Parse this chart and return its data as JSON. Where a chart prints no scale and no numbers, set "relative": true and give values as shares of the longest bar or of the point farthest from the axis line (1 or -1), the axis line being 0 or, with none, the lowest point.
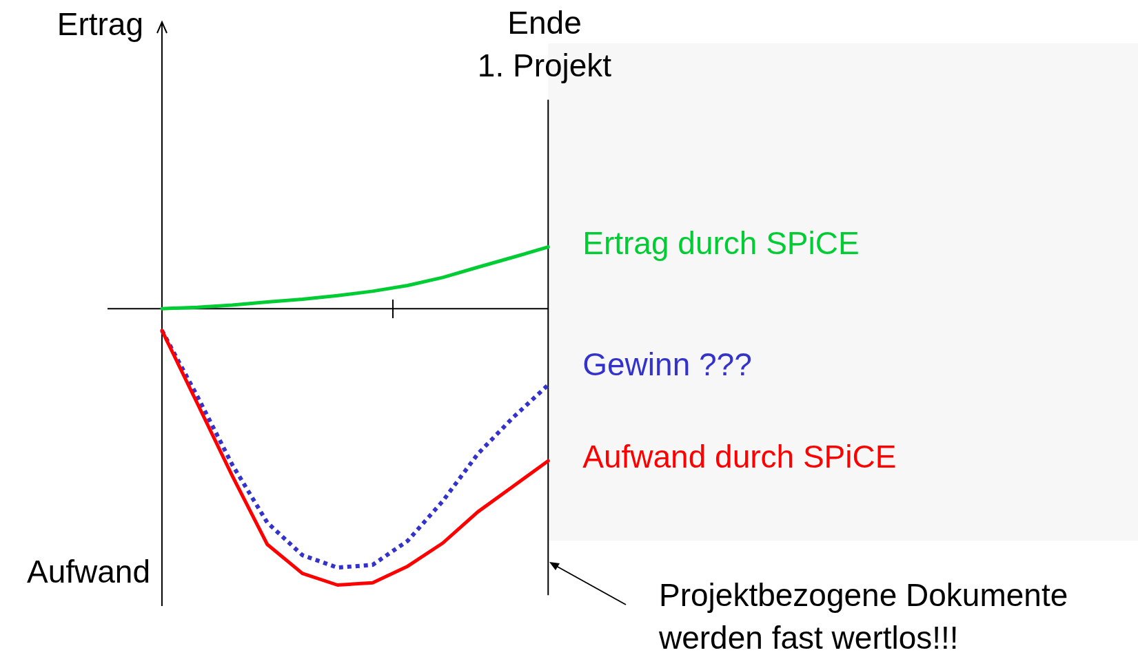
{
  "chart_data": {
    "type": "line",
    "relative": true,
    "categories": [
      null,
      null,
      null,
      null,
      null,
      null,
      null,
      null,
      null,
      null,
      null,
      null
    ],
    "series": [
      {
        "name": "Ertrag durch SPiCE",
        "color": "#00cc33",
        "line_style": "solid",
        "values": [
          0,
          0.005,
          0.013,
          0.024,
          0.034,
          0.047,
          0.063,
          0.084,
          0.113,
          0.15,
          0.186,
          0.223
        ]
      },
      {
        "name": "Gewinn ???",
        "color": "#3333cc",
        "line_style": "dotted",
        "values": [
          -0.079,
          -0.315,
          -0.564,
          -0.774,
          -0.892,
          -0.937,
          -0.927,
          -0.84,
          -0.696,
          -0.525,
          -0.394,
          -0.276
        ]
      },
      {
        "name": "Aufwand durch SPiCE",
        "color": "#ff0000",
        "line_style": "solid",
        "values": [
          -0.079,
          -0.341,
          -0.604,
          -0.853,
          -0.958,
          -1,
          -0.992,
          -0.932,
          -0.848,
          -0.735,
          -0.643,
          -0.551
        ]
      }
    ],
    "annotations": [
      "Ertrag",
      "Ende\n1. Projekt",
      "Aufwand",
      "Projektbezogene Dokumente\nwerden fast wertlos!!!"
    ]
  }
}
